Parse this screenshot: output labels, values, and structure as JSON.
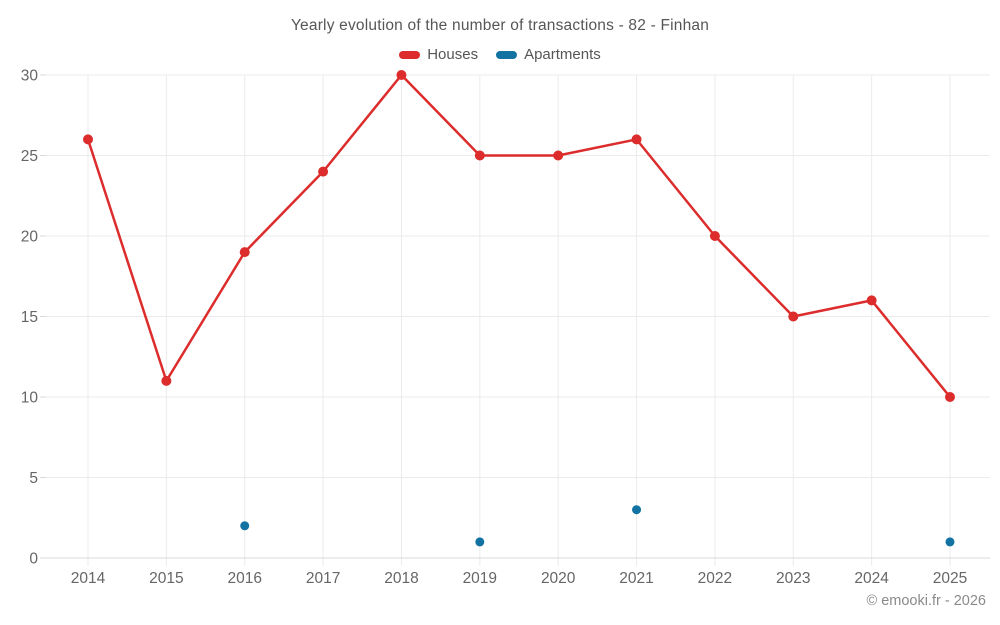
{
  "page": {
    "footer": "© emooki.fr - 2026"
  },
  "colors": {
    "houses": "#dc2c2c",
    "apartments": "#1272a2",
    "grid": "#ebebeb",
    "axis": "#d9d9d9",
    "title_text": "#565656",
    "axis_text": "#666666",
    "footer_text": "#8a8a8a",
    "background": "#ffffff"
  },
  "chart_data": {
    "type": "line",
    "title": "Yearly evolution of the number of transactions - 82 - Finhan",
    "categories": [
      "2014",
      "2015",
      "2016",
      "2017",
      "2018",
      "2019",
      "2020",
      "2021",
      "2022",
      "2023",
      "2024",
      "2025"
    ],
    "series": [
      {
        "name": "Houses",
        "type": "line",
        "color": "#dc2c2c",
        "values": [
          26,
          11,
          19,
          24,
          30,
          25,
          25,
          26,
          20,
          15,
          16,
          10
        ]
      },
      {
        "name": "Apartments",
        "type": "scatter",
        "color": "#1272a2",
        "values": [
          null,
          null,
          2,
          null,
          null,
          1,
          null,
          3,
          null,
          null,
          null,
          1
        ]
      }
    ],
    "xlabel": "",
    "ylabel": "",
    "ylim": [
      0,
      30
    ],
    "yticks": [
      0,
      5,
      10,
      15,
      20,
      25,
      30
    ],
    "grid": true,
    "legend_position": "top"
  }
}
